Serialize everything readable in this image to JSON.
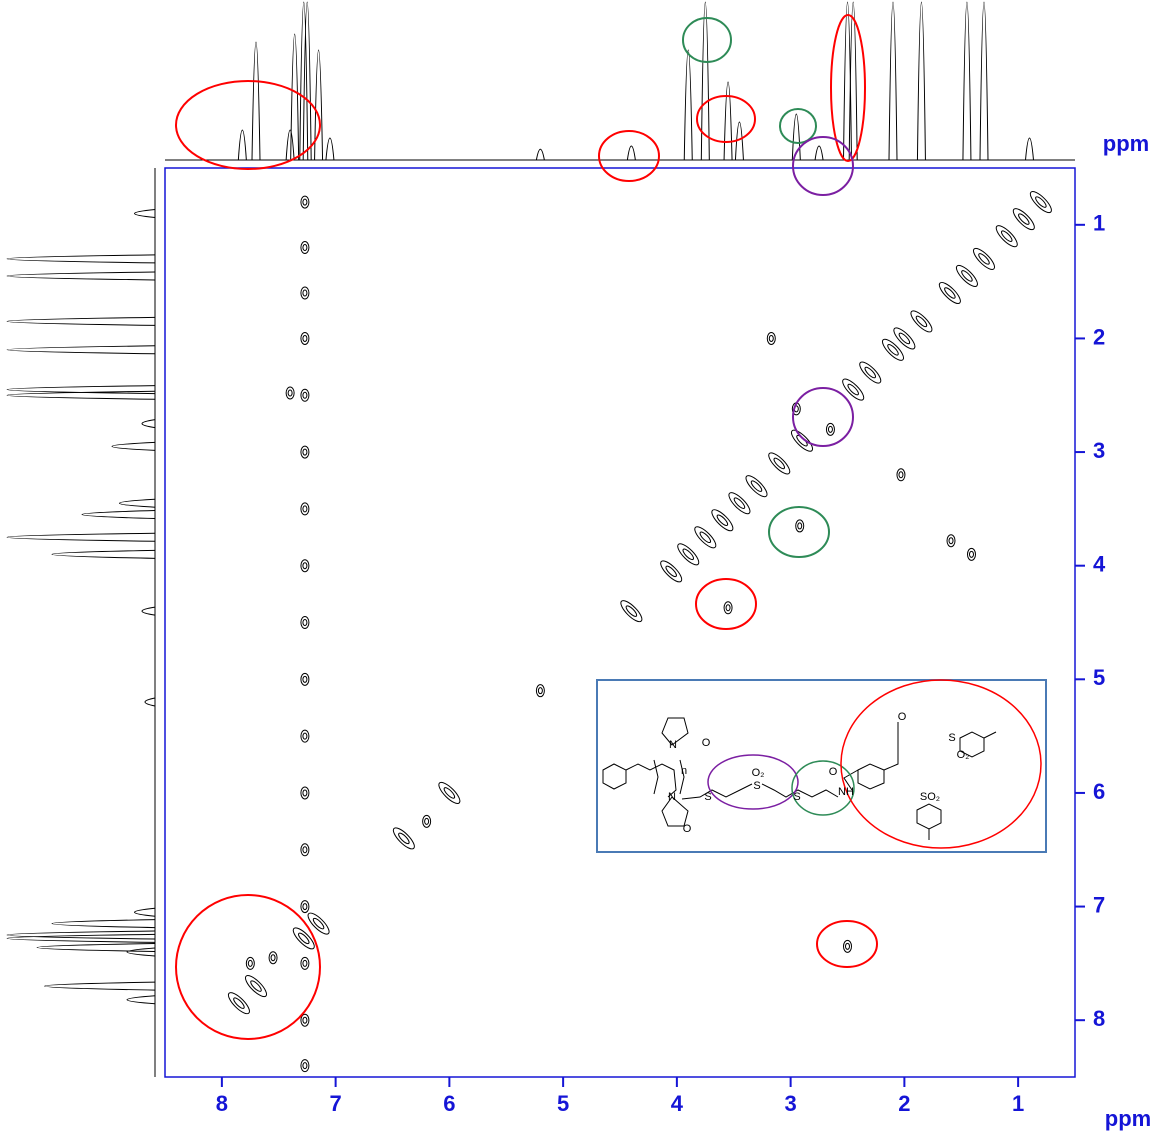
{
  "chart_data": {
    "type": "contour",
    "x_label": "ppm",
    "y_label": "ppm",
    "xlim": [
      8.5,
      0.5
    ],
    "ylim": [
      0.5,
      8.5
    ],
    "xticks": [
      1,
      2,
      3,
      4,
      5,
      6,
      7,
      8
    ],
    "yticks": [
      1,
      2,
      3,
      4,
      5,
      6,
      7,
      8
    ],
    "color": "#000000",
    "axis_color": "#1515d6",
    "peaks": {
      "x": [
        0.8,
        0.95,
        1.1,
        1.3,
        1.45,
        1.6,
        1.85,
        2.0,
        2.1,
        2.3,
        2.45,
        2.9,
        3.1,
        3.3,
        3.45,
        3.6,
        3.75,
        3.9,
        4.05,
        4.4,
        3.55,
        2.5,
        2.92,
        2.95,
        2.65,
        3.17,
        2.03,
        1.59,
        1.41,
        7.4,
        7.27,
        7.27,
        7.27,
        7.27,
        7.27,
        7.27,
        7.27,
        7.27,
        7.27,
        7.27,
        7.27,
        7.27,
        7.27,
        7.27,
        7.27,
        7.27,
        7.27,
        7.85,
        7.7,
        7.28,
        7.15,
        7.75,
        7.55,
        5.2,
        6.0,
        6.2,
        6.4
      ],
      "y": [
        0.8,
        0.95,
        1.1,
        1.3,
        1.45,
        1.6,
        1.85,
        2.0,
        2.1,
        2.3,
        2.45,
        2.9,
        3.1,
        3.3,
        3.45,
        3.6,
        3.75,
        3.9,
        4.05,
        4.4,
        4.37,
        7.35,
        3.65,
        2.62,
        2.8,
        2.0,
        3.2,
        3.78,
        3.9,
        2.48,
        0.8,
        1.2,
        1.6,
        2.0,
        2.5,
        3.0,
        3.5,
        4.0,
        4.5,
        5.0,
        5.5,
        6.0,
        6.5,
        7.0,
        7.5,
        8.0,
        8.4,
        7.85,
        7.7,
        7.28,
        7.15,
        7.5,
        7.45,
        5.1,
        6.0,
        6.25,
        6.4
      ]
    },
    "projection": {
      "ppm": [
        7.82,
        7.7,
        7.4,
        7.36,
        7.28,
        7.25,
        7.15,
        7.05,
        5.2,
        4.4,
        3.9,
        3.75,
        3.55,
        3.45,
        2.95,
        2.75,
        2.5,
        2.45,
        2.1,
        1.85,
        1.45,
        1.3,
        0.9
      ],
      "intensity": [
        20,
        75,
        20,
        80,
        100,
        100,
        70,
        15,
        8,
        10,
        70,
        100,
        50,
        25,
        30,
        10,
        100,
        100,
        100,
        100,
        100,
        100,
        15
      ]
    }
  },
  "structure": {
    "labels": [
      "O",
      "N",
      "n",
      "N",
      "O",
      "S",
      "O₂",
      "S",
      "S",
      "NH",
      "O",
      "O",
      "S",
      "O₂",
      "SO₂"
    ]
  }
}
